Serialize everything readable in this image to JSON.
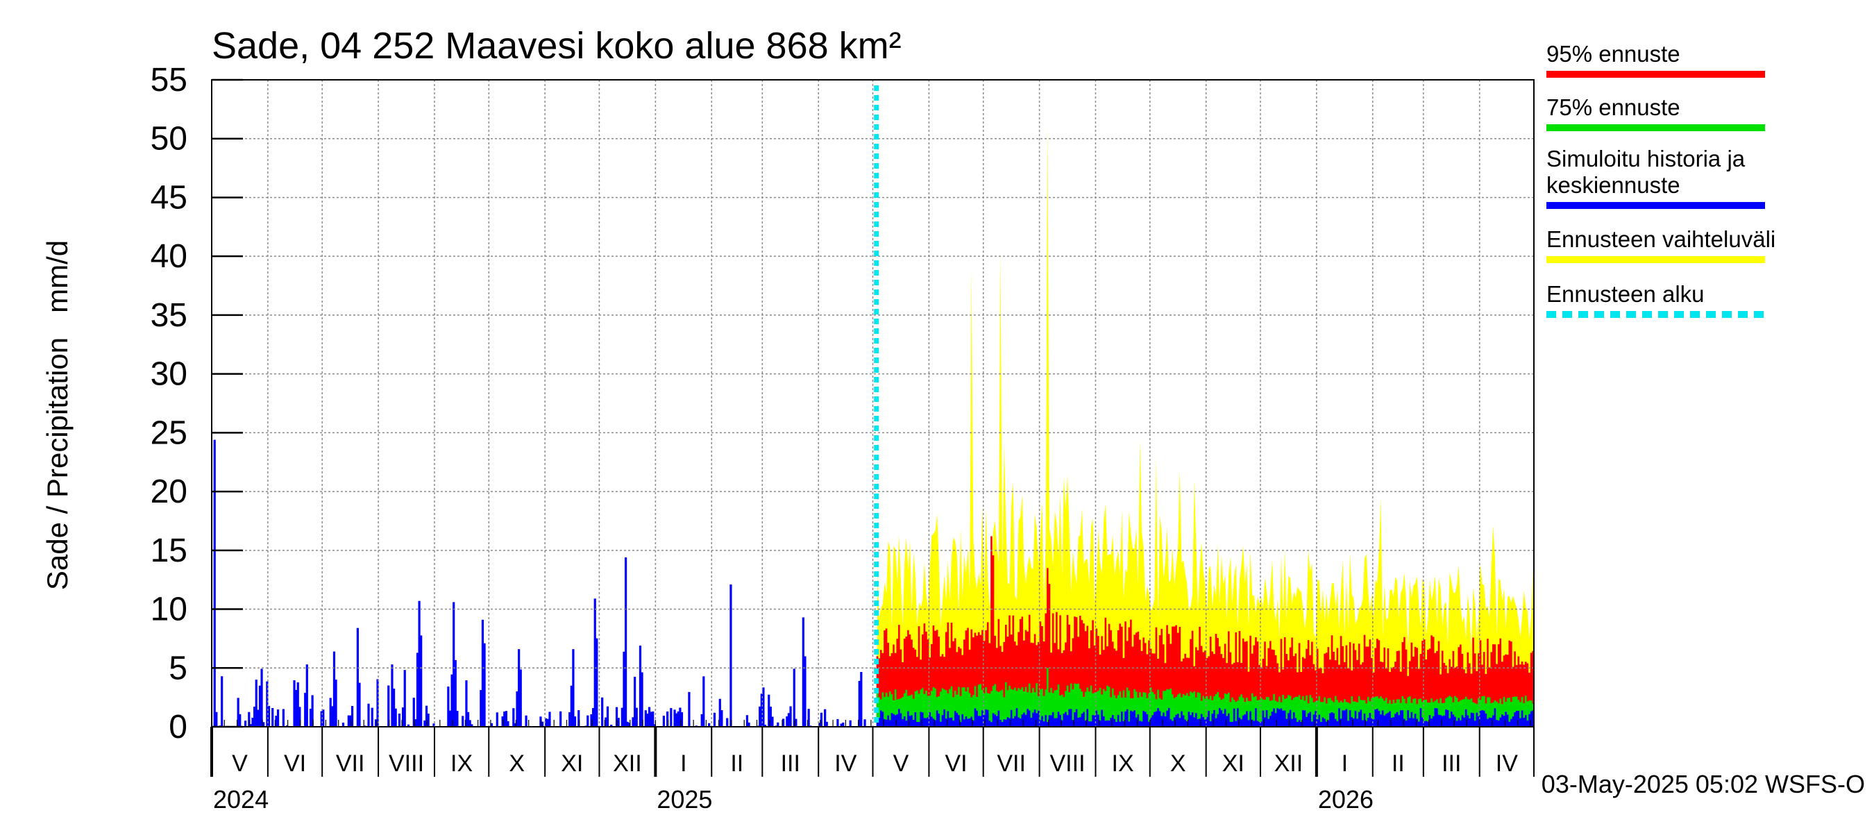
{
  "chart_data": {
    "type": "bar",
    "title": "Sade, 04 252 Maavesi koko alue 868 km²",
    "ylabel": "Sade / Precipitation   mm/d",
    "ylim": [
      0,
      55
    ],
    "yticks": [
      0,
      5,
      10,
      15,
      20,
      25,
      30,
      35,
      40,
      45,
      50,
      55
    ],
    "xlim": [
      "2024-05-01",
      "2026-05-01"
    ],
    "forecast_start": "2025-05-03",
    "grid": true,
    "legend_position": "right",
    "month_labels": [
      "V",
      "VI",
      "VII",
      "VIII",
      "IX",
      "X",
      "XI",
      "XII",
      "I",
      "II",
      "III",
      "IV",
      "V",
      "VI",
      "VII",
      "VIII",
      "IX",
      "X",
      "XI",
      "XII",
      "I",
      "II",
      "III",
      "IV"
    ],
    "year_labels": [
      {
        "label": "2024",
        "date": "2024-05-01"
      },
      {
        "label": "2025",
        "date": "2025-01-01"
      },
      {
        "label": "2026",
        "date": "2026-01-01"
      }
    ],
    "series": [
      {
        "name": "95% ennuste",
        "color": "#ff0000"
      },
      {
        "name": "75% ennuste",
        "color": "#00e000"
      },
      {
        "name": "Simuloitu historia ja keskiennuste",
        "color": "#0000ff"
      },
      {
        "name": "Ennusteen vaihteluväli",
        "color": "#ffff00"
      },
      {
        "name": "Ennusteen alku",
        "color": "#00e5ee"
      }
    ],
    "history_peaks": [
      {
        "date": "2024-05-02",
        "value": 24.4
      },
      {
        "date": "2024-05-27",
        "value": 3.5
      },
      {
        "date": "2024-06-22",
        "value": 5.3
      },
      {
        "date": "2024-07-07",
        "value": 6.4
      },
      {
        "date": "2024-07-20",
        "value": 8.4
      },
      {
        "date": "2024-08-08",
        "value": 5.3
      },
      {
        "date": "2024-08-23",
        "value": 10.7
      },
      {
        "date": "2024-09-11",
        "value": 10.6
      },
      {
        "date": "2024-09-27",
        "value": 9.1
      },
      {
        "date": "2024-10-17",
        "value": 6.6
      },
      {
        "date": "2024-11-16",
        "value": 6.6
      },
      {
        "date": "2024-11-28",
        "value": 10.9
      },
      {
        "date": "2024-12-15",
        "value": 14.4
      },
      {
        "date": "2024-12-23",
        "value": 6.9
      },
      {
        "date": "2025-02-11",
        "value": 12.1
      },
      {
        "date": "2025-03-23",
        "value": 9.3
      },
      {
        "date": "2025-04-23",
        "value": 3.9
      }
    ],
    "forecast_peaks": {
      "range_max": [
        {
          "date": "2025-06-24",
          "value": 39.0
        },
        {
          "date": "2025-07-10",
          "value": 40.5
        },
        {
          "date": "2025-08-05",
          "value": 51.5
        },
        {
          "date": "2025-09-25",
          "value": 24.5
        },
        {
          "date": "2026-02-05",
          "value": 19.5
        }
      ],
      "p95_max": [
        {
          "date": "2025-07-05",
          "value": 16.2
        },
        {
          "date": "2025-08-05",
          "value": 13.5
        }
      ],
      "p75_max": [
        {
          "date": "2025-08-05",
          "value": 5.0
        }
      ]
    }
  },
  "footer": {
    "timestamp": "03-May-2025 05:02 WSFS-O"
  }
}
